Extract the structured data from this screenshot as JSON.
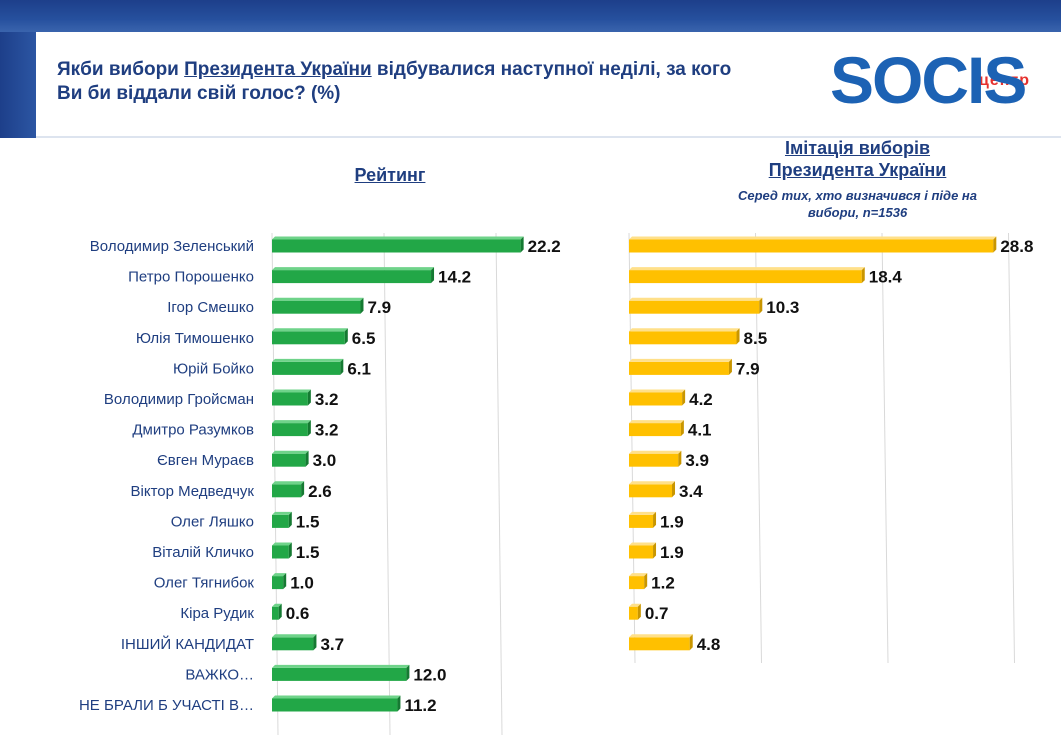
{
  "title": {
    "part1": "Якби вибори ",
    "highlight": "Президента України",
    "part2": " відбувалися наступної неділі, за кого Ви би віддали свій голос? (%)"
  },
  "logo": {
    "small_text": "центр",
    "brand_text": "SOCIS"
  },
  "colors": {
    "green_bar": "#22a747",
    "yellow_bar": "#ffc000",
    "brand_blue": "#1c62b4"
  },
  "chart_data": [
    {
      "type": "bar",
      "orientation": "horizontal",
      "title": "Рейтинг",
      "categories": [
        "Володимир Зеленський",
        "Петро Порошенко",
        "Ігор Смешко",
        "Юлія Тимошенко",
        "Юрій Бойко",
        "Володимир Гройсман",
        "Дмитро Разумков",
        "Євген Мураєв",
        "Віктор Медведчук",
        "Олег Ляшко",
        "Віталій Кличко",
        "Олег Тягнибок",
        "Кіра Рудик",
        "ІНШИЙ КАНДИДАТ",
        "ВАЖКО…",
        "НЕ БРАЛИ Б УЧАСТІ В…"
      ],
      "values": [
        22.2,
        14.2,
        7.9,
        6.5,
        6.1,
        3.2,
        3.2,
        3.0,
        2.6,
        1.5,
        1.5,
        1.0,
        0.6,
        3.7,
        12.0,
        11.2
      ],
      "value_labels": [
        "22.2",
        "14.2",
        "7.9",
        "6.5",
        "6.1",
        "3.2",
        "3.2",
        "3.0",
        "2.6",
        "1.5",
        "1.5",
        "1.0",
        "0.6",
        "3.7",
        "12.0",
        "11.2"
      ],
      "xlim": [
        0,
        25
      ]
    },
    {
      "type": "bar",
      "orientation": "horizontal",
      "title": "Імітація виборів Президента України",
      "subtitle": "Серед тих, хто визначився і піде на вибори, n=1536",
      "categories": [
        "Володимир Зеленський",
        "Петро Порошенко",
        "Ігор Смешко",
        "Юлія Тимошенко",
        "Юрій Бойко",
        "Володимир Гройсман",
        "Дмитро Разумков",
        "Євген Мураєв",
        "Віктор Медведчук",
        "Олег Ляшко",
        "Віталій Кличко",
        "Олег Тягнибок",
        "Кіра Рудик",
        "ІНШИЙ КАНДИДАТ"
      ],
      "values": [
        28.8,
        18.4,
        10.3,
        8.5,
        7.9,
        4.2,
        4.1,
        3.9,
        3.4,
        1.9,
        1.9,
        1.2,
        0.7,
        4.8
      ],
      "value_labels": [
        "28.8",
        "18.4",
        "10.3",
        "8.5",
        "7.9",
        "4.2",
        "4.1",
        "3.9",
        "3.4",
        "1.9",
        "1.9",
        "1.2",
        "0.7",
        "4.8"
      ],
      "xlim": [
        0,
        30
      ]
    }
  ]
}
